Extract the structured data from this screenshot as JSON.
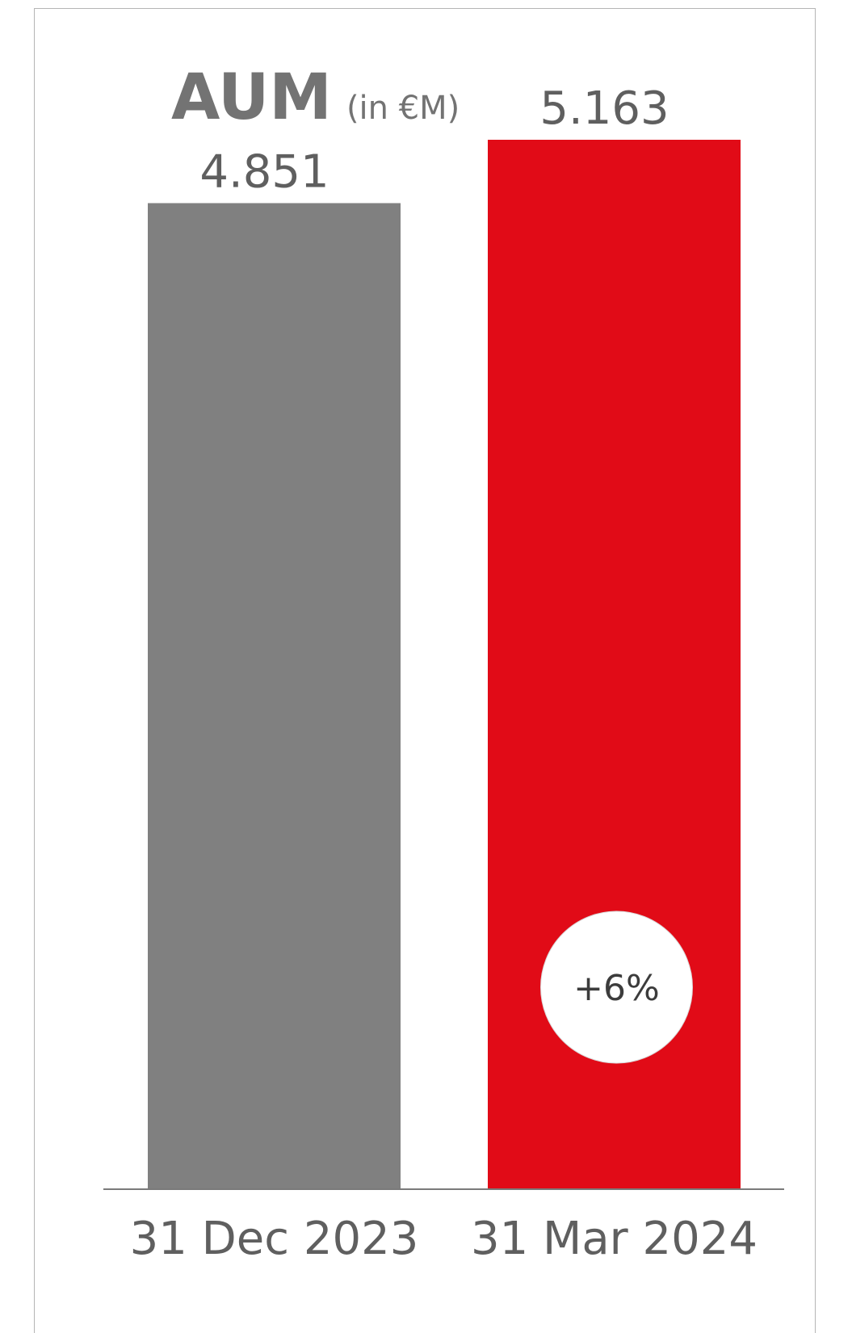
{
  "chart_data": {
    "type": "bar",
    "title": "AUM",
    "subtitle": "(in €M)",
    "categories": [
      "31 Dec 2023",
      "31 Mar 2024"
    ],
    "values": [
      4851,
      5163
    ],
    "value_labels": [
      "4.851",
      "5.163"
    ],
    "colors": [
      "#808080",
      "#e10b17"
    ],
    "ylim": [
      0,
      5700
    ],
    "grid": false,
    "annotation": {
      "text": "+6%",
      "category": "31 Mar 2024"
    }
  }
}
